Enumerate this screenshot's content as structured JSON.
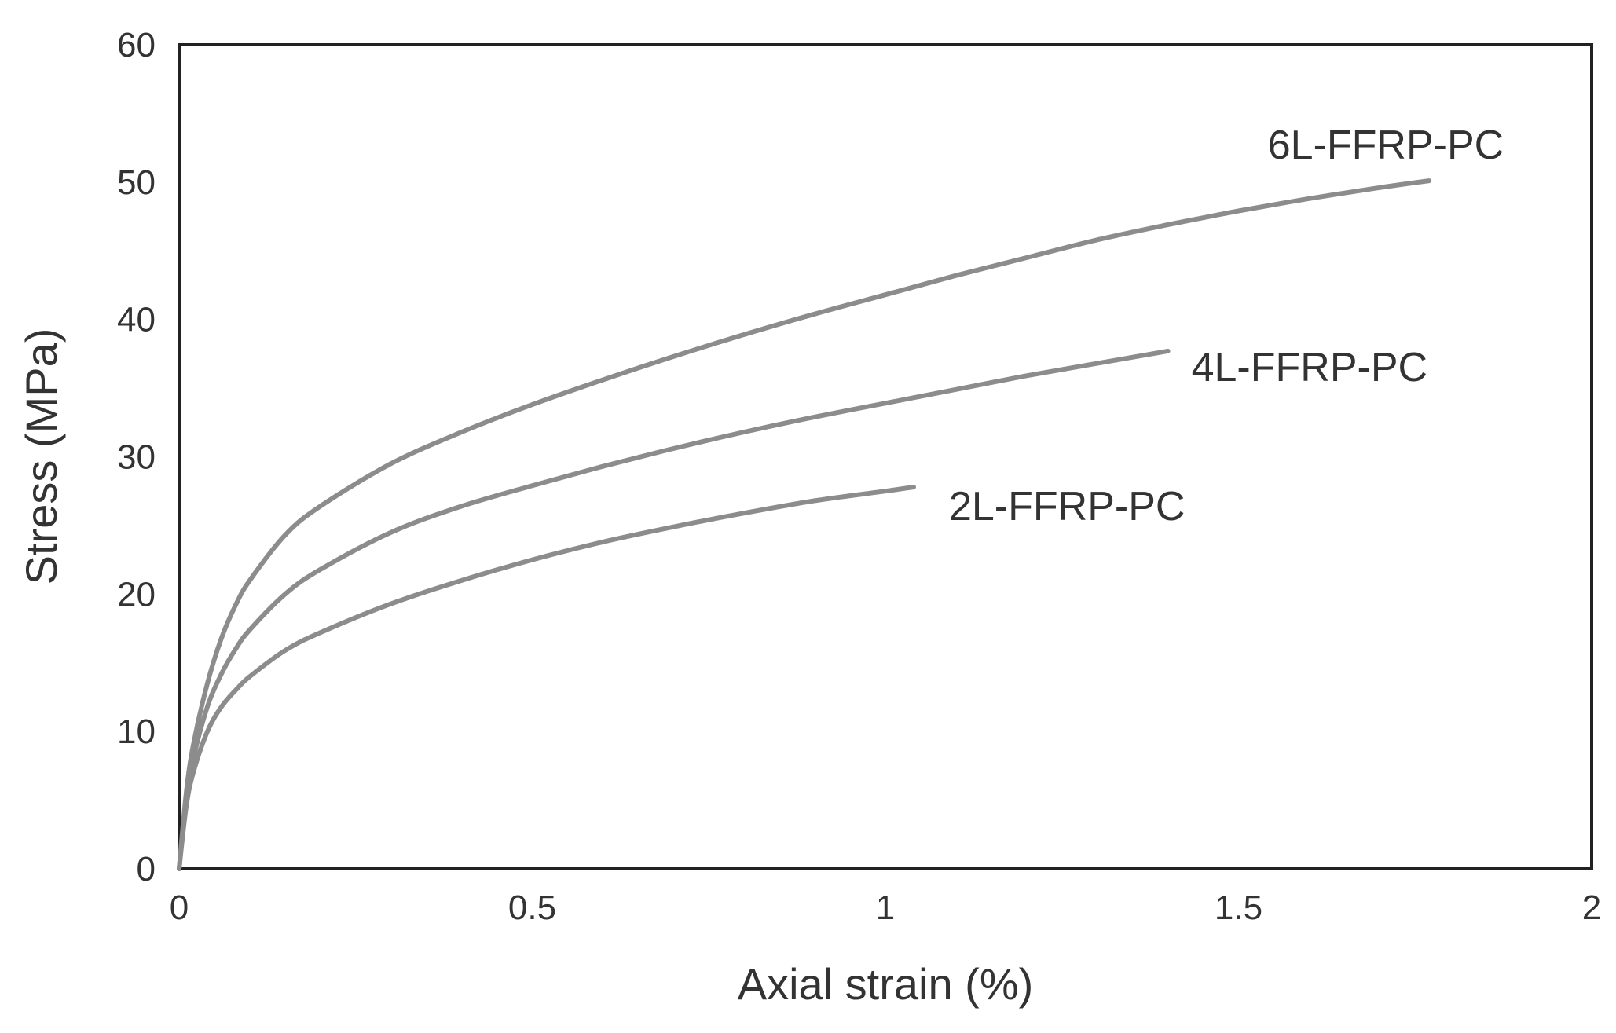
{
  "chart_data": {
    "type": "line",
    "title": "",
    "xlabel": "Axial strain (%)",
    "ylabel": "Stress (MPa)",
    "xlim": [
      0,
      2
    ],
    "ylim": [
      0,
      60
    ],
    "xticks": [
      {
        "value": 0,
        "label": "0"
      },
      {
        "value": 0.5,
        "label": "0.5"
      },
      {
        "value": 1,
        "label": "1"
      },
      {
        "value": 1.5,
        "label": "1.5"
      },
      {
        "value": 2,
        "label": "2"
      }
    ],
    "yticks": [
      {
        "value": 0,
        "label": "0"
      },
      {
        "value": 10,
        "label": "10"
      },
      {
        "value": 20,
        "label": "20"
      },
      {
        "value": 30,
        "label": "30"
      },
      {
        "value": 40,
        "label": "40"
      },
      {
        "value": 50,
        "label": "50"
      },
      {
        "value": 60,
        "label": "60"
      }
    ],
    "grid": false,
    "legend": "none",
    "series": [
      {
        "name": "2L-FFRP-PC",
        "color": "#8c8c8c",
        "x": [
          0,
          0.01,
          0.02,
          0.04,
          0.06,
          0.08,
          0.1,
          0.15,
          0.2,
          0.3,
          0.4,
          0.5,
          0.6,
          0.7,
          0.8,
          0.9,
          1.0,
          1.04
        ],
        "y": [
          0,
          4.5,
          7,
          10,
          11.8,
          13,
          14,
          15.9,
          17.2,
          19.3,
          21,
          22.5,
          23.8,
          24.9,
          25.9,
          26.8,
          27.5,
          27.8
        ]
      },
      {
        "name": "4L-FFRP-PC",
        "color": "#8c8c8c",
        "x": [
          0,
          0.01,
          0.02,
          0.04,
          0.06,
          0.08,
          0.1,
          0.15,
          0.2,
          0.3,
          0.4,
          0.5,
          0.6,
          0.7,
          0.8,
          0.9,
          1.0,
          1.1,
          1.2,
          1.3,
          1.4
        ],
        "y": [
          0,
          5,
          8,
          11.8,
          14.2,
          16,
          17.4,
          20,
          21.8,
          24.5,
          26.4,
          27.9,
          29.3,
          30.6,
          31.8,
          32.9,
          33.9,
          34.9,
          35.9,
          36.8,
          37.7
        ]
      },
      {
        "name": "6L-FFRP-PC",
        "color": "#8c8c8c",
        "x": [
          0,
          0.01,
          0.02,
          0.04,
          0.06,
          0.08,
          0.1,
          0.15,
          0.2,
          0.3,
          0.4,
          0.5,
          0.6,
          0.7,
          0.8,
          0.9,
          1.0,
          1.1,
          1.2,
          1.3,
          1.4,
          1.5,
          1.6,
          1.7,
          1.77
        ],
        "y": [
          0,
          5.5,
          9,
          13.5,
          16.8,
          19.2,
          21,
          24.3,
          26.4,
          29.5,
          31.8,
          33.8,
          35.6,
          37.3,
          38.9,
          40.4,
          41.8,
          43.2,
          44.5,
          45.8,
          46.9,
          47.9,
          48.8,
          49.6,
          50.1
        ]
      }
    ]
  }
}
